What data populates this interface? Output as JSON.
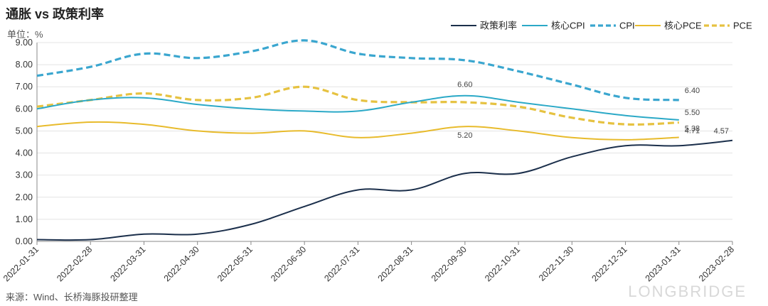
{
  "header": {
    "title": "通胀 vs 政策利率",
    "unit": "单位：%"
  },
  "footer": {
    "source": "来源：Wind、长桥海豚投研整理",
    "brand": "LONGBRIDGE"
  },
  "colors": {
    "policy": "#1b2f4b",
    "core_cpi": "#2ba9c7",
    "cpi": "#3aa6cf",
    "core_pce": "#e8bb2c",
    "pce": "#e6c241",
    "grid": "#e4e4e4",
    "axis": "#8a8a8a"
  },
  "chart_data": {
    "type": "line",
    "title": "通胀 vs 政策利率",
    "ylabel": "单位：%",
    "ylim": [
      0,
      9
    ],
    "yticks": [
      "0.00",
      "1.00",
      "2.00",
      "3.00",
      "4.00",
      "5.00",
      "6.00",
      "7.00",
      "8.00",
      "9.00"
    ],
    "grid": true,
    "legend": "top-right",
    "x": [
      "2022-01-31",
      "2022-02-28",
      "2022-03-31",
      "2022-04-30",
      "2022-05-31",
      "2022-06-30",
      "2022-07-31",
      "2022-08-31",
      "2022-09-30",
      "2022-10-31",
      "2022-11-30",
      "2022-12-31",
      "2023-01-31",
      "2023-02-28"
    ],
    "series": [
      {
        "name": "政策利率",
        "key": "policy",
        "dashed": false,
        "values": [
          0.08,
          0.08,
          0.33,
          0.33,
          0.77,
          1.58,
          2.33,
          2.33,
          3.08,
          3.08,
          3.83,
          4.33,
          4.33,
          4.57
        ]
      },
      {
        "name": "核心CPI",
        "key": "core_cpi",
        "dashed": false,
        "values": [
          6.0,
          6.4,
          6.5,
          6.2,
          6.0,
          5.9,
          5.9,
          6.3,
          6.6,
          6.3,
          6.0,
          5.7,
          5.5,
          null
        ]
      },
      {
        "name": "CPI",
        "key": "cpi",
        "dashed": true,
        "values": [
          7.5,
          7.9,
          8.5,
          8.3,
          8.6,
          9.1,
          8.5,
          8.3,
          8.2,
          7.7,
          7.1,
          6.5,
          6.4,
          null
        ]
      },
      {
        "name": "核心PCE",
        "key": "core_pce",
        "dashed": false,
        "values": [
          5.2,
          5.4,
          5.3,
          5.0,
          4.9,
          5.0,
          4.7,
          4.9,
          5.2,
          5.0,
          4.7,
          4.6,
          4.71,
          null
        ]
      },
      {
        "name": "PCE",
        "key": "pce",
        "dashed": true,
        "values": [
          6.1,
          6.4,
          6.7,
          6.4,
          6.5,
          7.0,
          6.4,
          6.3,
          6.3,
          6.1,
          5.6,
          5.3,
          5.38,
          null
        ]
      }
    ],
    "annotations": [
      {
        "series": "核心CPI",
        "index": 8,
        "text": "6.60"
      },
      {
        "series": "核心PCE",
        "index": 8,
        "text": "5.20"
      },
      {
        "series": "CPI",
        "index": 12,
        "text": "6.40"
      },
      {
        "series": "核心CPI",
        "index": 12,
        "text": "5.50"
      },
      {
        "series": "PCE",
        "index": 12,
        "text": "5.38"
      },
      {
        "series": "核心PCE",
        "index": 12,
        "text": "4.71"
      },
      {
        "series": "政策利率",
        "index": 13,
        "text": "4.57"
      }
    ]
  }
}
